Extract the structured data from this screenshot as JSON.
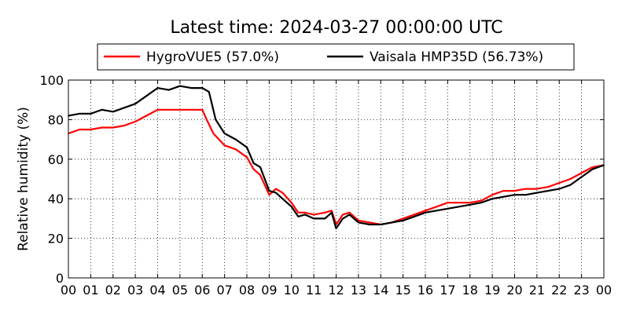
{
  "chart_data": {
    "type": "line",
    "title": "Latest time: 2024-03-27 00:00:00 UTC",
    "xlabel": "",
    "ylabel": "Relative humidity (%)",
    "xlim": [
      0,
      24
    ],
    "ylim": [
      0,
      100
    ],
    "grid": true,
    "legend_position": "top",
    "x_tick_labels": [
      "00",
      "01",
      "02",
      "03",
      "04",
      "05",
      "06",
      "07",
      "08",
      "09",
      "10",
      "11",
      "12",
      "13",
      "14",
      "15",
      "16",
      "17",
      "18",
      "19",
      "20",
      "21",
      "22",
      "23",
      "00"
    ],
    "y_ticks": [
      0,
      20,
      40,
      60,
      80,
      100
    ],
    "series": [
      {
        "name": "HygroVUE5 (57.0%)",
        "color": "#ff0000",
        "x": [
          0,
          0.5,
          1,
          1.5,
          2,
          2.5,
          3,
          3.5,
          4,
          4.5,
          5,
          5.5,
          6,
          6.2,
          6.5,
          7,
          7.5,
          8,
          8.3,
          8.6,
          9,
          9.3,
          9.6,
          10,
          10.3,
          10.6,
          11,
          11.5,
          11.8,
          12,
          12.3,
          12.6,
          13,
          13.5,
          14,
          14.5,
          15,
          15.5,
          16,
          16.5,
          17,
          17.5,
          18,
          18.5,
          19,
          19.5,
          20,
          20.5,
          21,
          21.5,
          22,
          22.5,
          23,
          23.5,
          24
        ],
        "y": [
          73,
          75,
          75,
          76,
          76,
          77,
          79,
          82,
          85,
          85,
          85,
          85,
          85,
          80,
          73,
          67,
          65,
          61,
          55,
          52,
          42,
          45,
          43,
          38,
          33,
          33,
          32,
          33,
          34,
          27,
          32,
          33,
          29,
          28,
          27,
          28,
          30,
          32,
          34,
          36,
          38,
          38,
          38,
          39,
          42,
          44,
          44,
          45,
          45,
          46,
          48,
          50,
          53,
          56,
          57
        ]
      },
      {
        "name": "Vaisala HMP35D (56.73%)",
        "color": "#000000",
        "x": [
          0,
          0.5,
          1,
          1.5,
          2,
          2.5,
          3,
          3.5,
          4,
          4.5,
          5,
          5.5,
          6,
          6.3,
          6.6,
          7,
          7.5,
          8,
          8.3,
          8.6,
          9,
          9.3,
          9.6,
          10,
          10.3,
          10.6,
          11,
          11.5,
          11.8,
          12,
          12.3,
          12.6,
          13,
          13.5,
          14,
          14.5,
          15,
          15.5,
          16,
          16.5,
          17,
          17.5,
          18,
          18.5,
          19,
          19.5,
          20,
          20.5,
          21,
          21.5,
          22,
          22.5,
          23,
          23.5,
          24
        ],
        "y": [
          82,
          83,
          83,
          85,
          84,
          86,
          88,
          92,
          96,
          95,
          97,
          96,
          96,
          94,
          80,
          73,
          70,
          66,
          58,
          56,
          44,
          43,
          40,
          36,
          31,
          32,
          30,
          30,
          33,
          25,
          30,
          32,
          28,
          27,
          27,
          28,
          29,
          31,
          33,
          34,
          35,
          36,
          37,
          38,
          40,
          41,
          42,
          42,
          43,
          44,
          45,
          47,
          51,
          55,
          57
        ]
      }
    ]
  }
}
